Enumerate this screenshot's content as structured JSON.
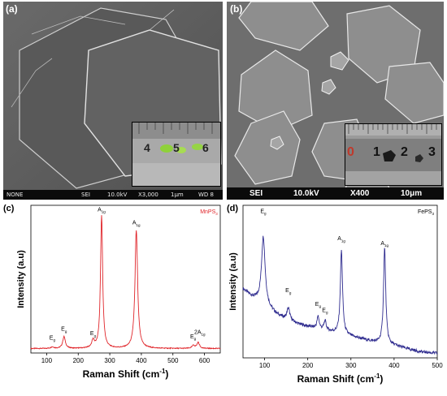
{
  "panels": {
    "a": {
      "label": "(a)",
      "sem_bar": {
        "signal": "NONE",
        "detector": "SEI",
        "voltage": "10.0kV",
        "magnification": "X3,000",
        "scale": "1μm",
        "wd": "WD 8"
      },
      "inset_numbers": [
        "4",
        "5",
        "6"
      ]
    },
    "b": {
      "label": "(b)",
      "sem_bar": {
        "detector": "SEI",
        "voltage": "10.0kV",
        "magnification": "X400",
        "scale": "10μm"
      },
      "inset_numbers": [
        "0",
        "1",
        "2",
        "3"
      ]
    },
    "c": {
      "label": "(c)",
      "sample": "MnPS",
      "sample_sub": "3"
    },
    "d": {
      "label": "(d)",
      "sample": "FePS",
      "sample_sub": "3"
    }
  },
  "chart_data": [
    {
      "type": "line",
      "panel": "c",
      "title": "MnPS3",
      "xlabel": "Raman Shift (cm-1)",
      "ylabel": "Intensity (a.u)",
      "xlim": [
        50,
        650
      ],
      "ylim": [
        0,
        1.0
      ],
      "xticks": [
        100,
        200,
        300,
        400,
        500,
        600
      ],
      "line_color": "#e0262b",
      "baseline": 0.03,
      "peaks": [
        {
          "x": 118,
          "height": 0.01,
          "width": 6
        },
        {
          "x": 155,
          "height": 0.08,
          "width": 5
        },
        {
          "x": 247,
          "height": 0.05,
          "width": 5
        },
        {
          "x": 274,
          "height": 0.9,
          "width": 4
        },
        {
          "x": 384,
          "height": 0.8,
          "width": 5
        },
        {
          "x": 565,
          "height": 0.02,
          "width": 5
        },
        {
          "x": 580,
          "height": 0.04,
          "width": 5
        }
      ],
      "annotations": [
        {
          "x": 118,
          "label": "E",
          "sub": "g",
          "y": 0.09
        },
        {
          "x": 155,
          "label": "E",
          "sub": "g",
          "y": 0.15
        },
        {
          "x": 247,
          "label": "E",
          "sub": "g",
          "y": 0.12
        },
        {
          "x": 274,
          "label": "A",
          "sub": "1g",
          "y": 0.96
        },
        {
          "x": 384,
          "label": "A",
          "sub": "1g",
          "y": 0.87
        },
        {
          "x": 564,
          "label": "E",
          "sub": "g",
          "y": 0.1
        },
        {
          "x": 585,
          "label": "2A",
          "sub": "1g",
          "y": 0.13
        }
      ]
    },
    {
      "type": "line",
      "panel": "d",
      "title": "FePS3",
      "xlabel": "Raman Shift (cm-1)",
      "ylabel": "Intensity (a.u)",
      "xlim": [
        50,
        500
      ],
      "ylim": [
        0,
        1.0
      ],
      "xticks": [
        100,
        200,
        300,
        400,
        500
      ],
      "line_color": "#2f2c8f",
      "baseline_points": [
        [
          50,
          0.45
        ],
        [
          70,
          0.4
        ],
        [
          90,
          0.36
        ],
        [
          110,
          0.32
        ],
        [
          130,
          0.28
        ],
        [
          150,
          0.25
        ],
        [
          180,
          0.22
        ],
        [
          210,
          0.2
        ],
        [
          240,
          0.18
        ],
        [
          270,
          0.16
        ],
        [
          300,
          0.14
        ],
        [
          330,
          0.12
        ],
        [
          360,
          0.1
        ],
        [
          400,
          0.08
        ],
        [
          430,
          0.06
        ],
        [
          460,
          0.04
        ],
        [
          500,
          0.03
        ]
      ],
      "peaks": [
        {
          "x": 97,
          "height": 0.45,
          "width": 5
        },
        {
          "x": 155,
          "height": 0.08,
          "width": 4
        },
        {
          "x": 224,
          "height": 0.08,
          "width": 3
        },
        {
          "x": 240,
          "height": 0.06,
          "width": 3
        },
        {
          "x": 278,
          "height": 0.55,
          "width": 3
        },
        {
          "x": 378,
          "height": 0.63,
          "width": 3
        }
      ],
      "annotations": [
        {
          "x": 97,
          "label": "E",
          "sub": "g",
          "y": 0.95
        },
        {
          "x": 155,
          "label": "E",
          "sub": "g",
          "y": 0.43
        },
        {
          "x": 224,
          "label": "E",
          "sub": "g",
          "y": 0.34
        },
        {
          "x": 240,
          "label": "E",
          "sub": "g",
          "y": 0.3
        },
        {
          "x": 278,
          "label": "A",
          "sub": "1g",
          "y": 0.77
        },
        {
          "x": 378,
          "label": "A",
          "sub": "1g",
          "y": 0.74
        }
      ]
    }
  ]
}
